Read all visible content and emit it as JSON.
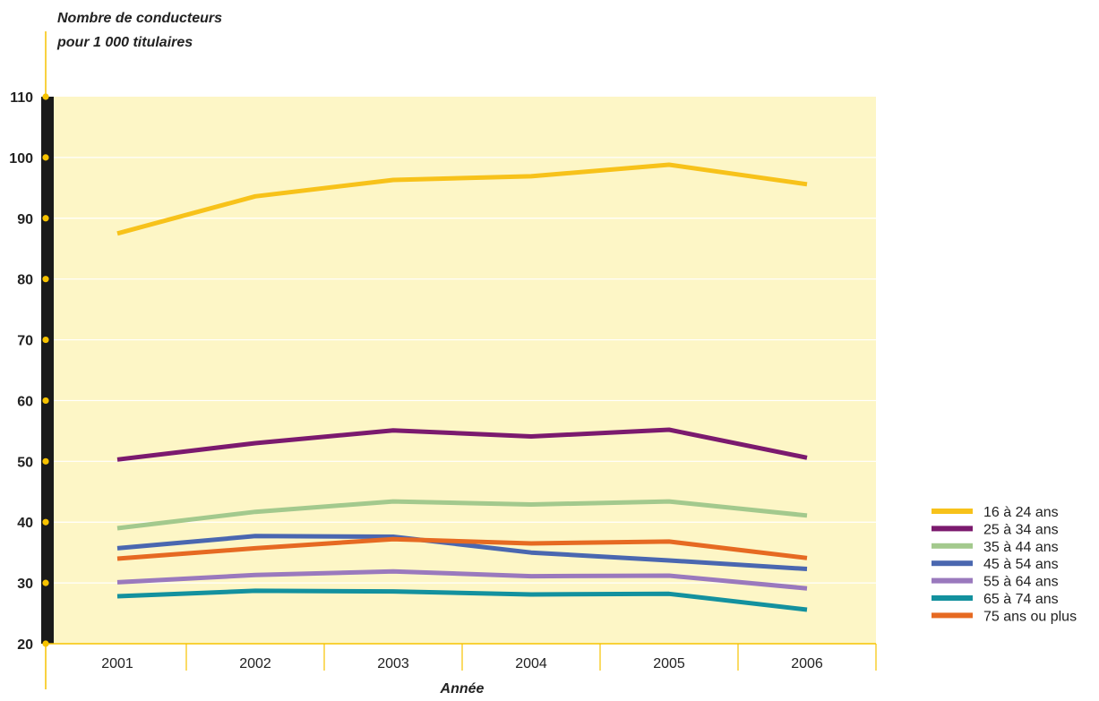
{
  "chart_data": {
    "type": "line",
    "ylabel_line1": "Nombre de conducteurs",
    "ylabel_line2": "pour 1 000 titulaires",
    "xlabel": "Année",
    "categories": [
      "2001",
      "2002",
      "2003",
      "2004",
      "2005",
      "2006"
    ],
    "ylim": [
      20,
      110
    ],
    "yticks": [
      20,
      30,
      40,
      50,
      60,
      70,
      80,
      90,
      100,
      110
    ],
    "grid": true,
    "legend_position": "right-bottom",
    "colors": {
      "plot_background": "#fdf6c6",
      "axis_bar": "#1a1a1a",
      "accent": "#f7c300"
    },
    "series": [
      {
        "name": "16 à 24 ans",
        "color": "#f7c21a",
        "values": [
          87.5,
          93.6,
          96.3,
          96.9,
          98.8,
          95.6
        ]
      },
      {
        "name": "25 à 34 ans",
        "color": "#7b1a6e",
        "values": [
          50.3,
          53.0,
          55.1,
          54.1,
          55.2,
          50.6
        ]
      },
      {
        "name": "35 à 44 ans",
        "color": "#a3c98d",
        "values": [
          39.0,
          41.7,
          43.4,
          42.9,
          43.4,
          41.1
        ]
      },
      {
        "name": "45 à 54 ans",
        "color": "#4a67b0",
        "values": [
          35.7,
          37.7,
          37.6,
          35.0,
          33.7,
          32.3
        ]
      },
      {
        "name": "55 à 64 ans",
        "color": "#9a79bd",
        "values": [
          30.1,
          31.3,
          31.9,
          31.1,
          31.2,
          29.1
        ]
      },
      {
        "name": "65 à 74 ans",
        "color": "#13919e",
        "values": [
          27.8,
          28.7,
          28.6,
          28.1,
          28.2,
          25.6
        ]
      },
      {
        "name": "75 ans ou plus",
        "color": "#e66a22",
        "values": [
          34.0,
          35.7,
          37.2,
          36.5,
          36.8,
          34.1
        ]
      }
    ]
  }
}
